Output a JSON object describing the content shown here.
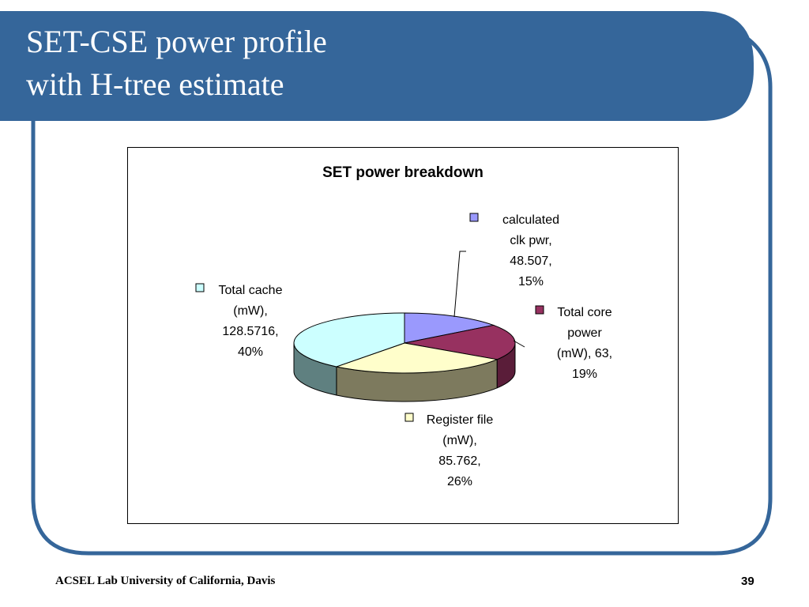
{
  "slide": {
    "title_lines": [
      "SET-CSE power profile",
      "with H-tree estimate"
    ],
    "footer": "ACSEL Lab University of California, Davis",
    "page_number": "39",
    "colors": {
      "banner": "#35669a",
      "frame": "#35669a"
    }
  },
  "chart_data": {
    "type": "pie",
    "style": "3d-exploded",
    "title": "SET power breakdown",
    "legend": "inline-labels",
    "slices": [
      {
        "label": "calculated clk pwr",
        "value": 48.507,
        "percent": 15,
        "color": "#9a99fd",
        "side_color": "#5f5fa0",
        "label_lines": [
          "calculated",
          "clk pwr,",
          "48.507,",
          "15%"
        ]
      },
      {
        "label": "Total core power (mW)",
        "value": 63,
        "percent": 19,
        "color": "#973160",
        "side_color": "#5a1d39",
        "label_lines": [
          "Total core",
          "power",
          "(mW), 63,",
          "19%"
        ]
      },
      {
        "label": "Register file (mW)",
        "value": 85.762,
        "percent": 26,
        "color": "#fffecb",
        "side_color": "#7d7a5e",
        "label_lines": [
          "Register file",
          "(mW),",
          "85.762,",
          "26%"
        ]
      },
      {
        "label": "Total cache (mW)",
        "value": 128.5716,
        "percent": 40,
        "color": "#ccffff",
        "side_color": "#5f8080",
        "label_lines": [
          "Total cache",
          "(mW),",
          "128.5716,",
          "40%"
        ]
      }
    ]
  }
}
